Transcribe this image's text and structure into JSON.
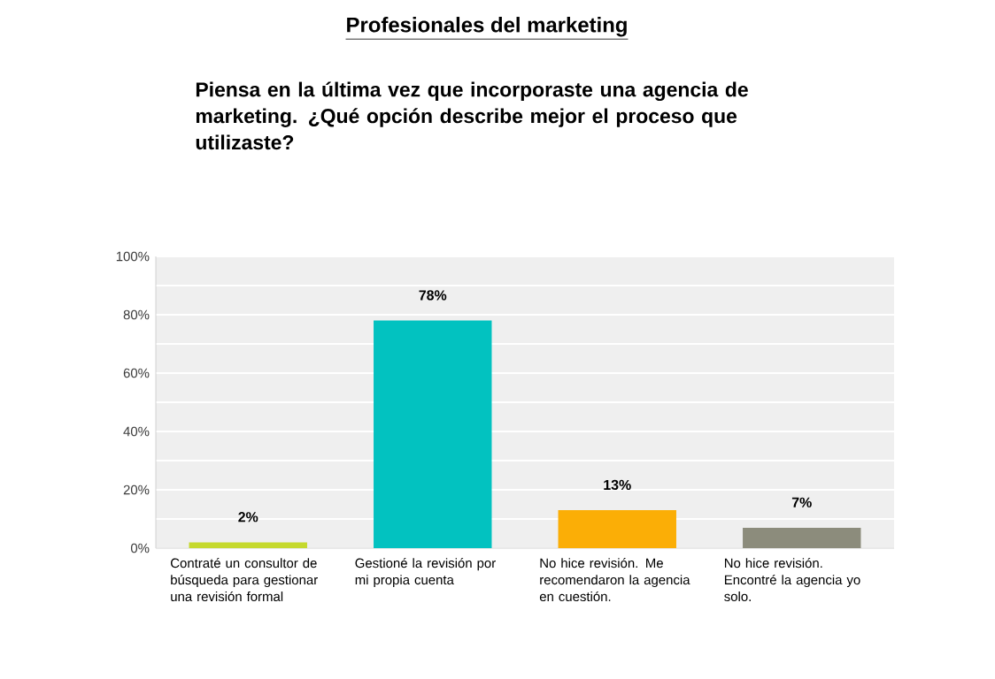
{
  "chart_data": {
    "type": "bar",
    "title": "Profesionales del marketing",
    "subtitle": "Piensa en la última vez que incorporaste una agencia de marketing. ¿Qué opción describe mejor el proceso que utilizaste?",
    "categories": [
      "Contraté un consultor de búsqueda para gestionar una revisión formal",
      "Gestioné la revisión por mi propia cuenta",
      "No hice revisión. Me recomendaron la agencia en cuestión.",
      "No hice revisión. Encontré la agencia yo solo."
    ],
    "values": [
      2,
      78,
      13,
      7
    ],
    "colors": [
      "#c5d92d",
      "#02c2c0",
      "#fbae06",
      "#8c8c7c"
    ],
    "value_labels": [
      "2%",
      "78%",
      "13%",
      "7%"
    ],
    "ylim": [
      0,
      100
    ],
    "yticks": [
      {
        "value": 0,
        "label": "0%"
      },
      {
        "value": 10,
        "label": null
      },
      {
        "value": 20,
        "label": "20%"
      },
      {
        "value": 30,
        "label": null
      },
      {
        "value": 40,
        "label": "40%"
      },
      {
        "value": 50,
        "label": null
      },
      {
        "value": 60,
        "label": "60%"
      },
      {
        "value": 70,
        "label": null
      },
      {
        "value": 80,
        "label": "80%"
      },
      {
        "value": 90,
        "label": null
      },
      {
        "value": 100,
        "label": "100%"
      }
    ],
    "grid": "y"
  }
}
